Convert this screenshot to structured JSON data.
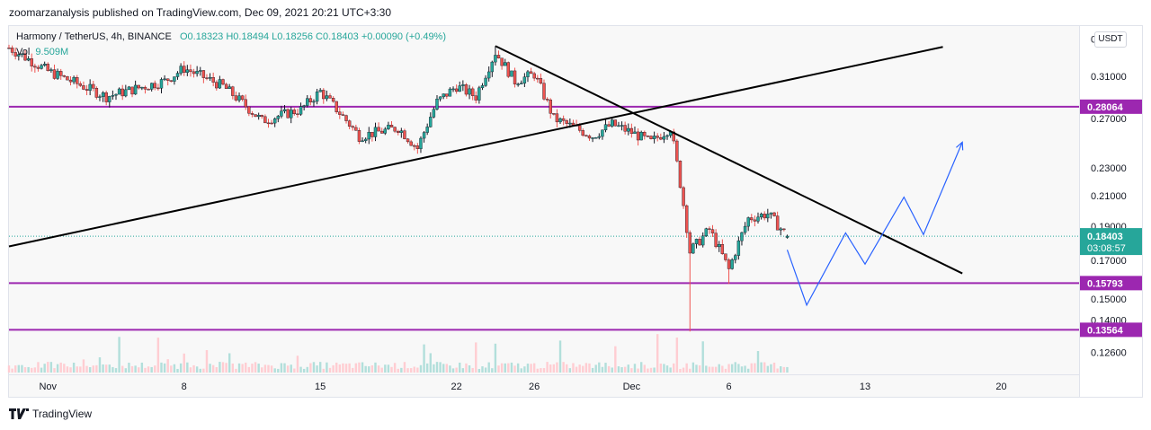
{
  "publisher_line": "zoomarzanalysis published on TradingView.com, Dec 09, 2021 20:21 UTC+3:30",
  "legend": {
    "symbol": "Harmony / TetherUS, 4h, BINANCE",
    "ohlc": "O0.18323 H0.18494 L0.18256 C0.18403 +0.00090 (+0.49%)",
    "vol_label": "Vol",
    "vol_value": "9.509M"
  },
  "currency_button": "USDT",
  "footer_brand": "TradingView",
  "icons": {
    "brand": "tradingview-logo-icon"
  },
  "colors": {
    "up": "#26a69a",
    "down": "#ef5350",
    "candle_body_up": "#26a69a",
    "candle_body_down": "#ef5350",
    "level": "#9c27b0",
    "trend": "#000000",
    "projection": "#2962ff",
    "price_badge": "#26a69a"
  },
  "chart_data": {
    "type": "candlestick",
    "y_scale": "log",
    "ylim": [
      0.118,
      0.365
    ],
    "y_ticks": [
      "0.35000",
      "0.31000",
      "0.27000",
      "0.23000",
      "0.21000",
      "0.19000",
      "0.17000",
      "0.15000",
      "0.14000",
      "0.12600"
    ],
    "x_ticks": [
      "Nov",
      "8",
      "15",
      "22",
      "26",
      "Dec",
      "6",
      "13",
      "20"
    ],
    "x_tick_dates": [
      "2021-11-01",
      "2021-11-08",
      "2021-11-15",
      "2021-11-22",
      "2021-11-26",
      "2021-12-01",
      "2021-12-06",
      "2021-12-13",
      "2021-12-20"
    ],
    "x_range": [
      "2021-10-30",
      "2021-12-24"
    ],
    "interval": "4h",
    "levels": [
      {
        "value": 0.28064,
        "label": "0.28064"
      },
      {
        "value": 0.15793,
        "label": "0.15793"
      },
      {
        "value": 0.13564,
        "label": "0.13564"
      }
    ],
    "last_price": {
      "value": 0.18403,
      "label": "0.18403",
      "countdown": "03:08:57"
    },
    "anchor_points": [
      {
        "date": "2021-10-30",
        "close": 0.34
      },
      {
        "date": "2021-11-01",
        "close": 0.315
      },
      {
        "date": "2021-11-04",
        "close": 0.29
      },
      {
        "date": "2021-11-07",
        "close": 0.305
      },
      {
        "date": "2021-11-08",
        "close": 0.318
      },
      {
        "date": "2021-11-10",
        "close": 0.3
      },
      {
        "date": "2021-11-12",
        "close": 0.268
      },
      {
        "date": "2021-11-14",
        "close": 0.278
      },
      {
        "date": "2021-11-15",
        "close": 0.295
      },
      {
        "date": "2021-11-17",
        "close": 0.255
      },
      {
        "date": "2021-11-19",
        "close": 0.262
      },
      {
        "date": "2021-11-20",
        "close": 0.245
      },
      {
        "date": "2021-11-21",
        "close": 0.285
      },
      {
        "date": "2021-11-22",
        "close": 0.3
      },
      {
        "date": "2021-11-23",
        "close": 0.29
      },
      {
        "date": "2021-11-24",
        "close": 0.335
      },
      {
        "date": "2021-11-25",
        "close": 0.305
      },
      {
        "date": "2021-11-26",
        "close": 0.312
      },
      {
        "date": "2021-11-27",
        "close": 0.27
      },
      {
        "date": "2021-11-29",
        "close": 0.255
      },
      {
        "date": "2021-11-30",
        "close": 0.265
      },
      {
        "date": "2021-12-01",
        "close": 0.258
      },
      {
        "date": "2021-12-02",
        "close": 0.25
      },
      {
        "date": "2021-12-03",
        "close": 0.262
      },
      {
        "date": "2021-12-04",
        "close": 0.175
      },
      {
        "date": "2021-12-05",
        "close": 0.188
      },
      {
        "date": "2021-12-06",
        "close": 0.165
      },
      {
        "date": "2021-12-07",
        "close": 0.195
      },
      {
        "date": "2021-12-08",
        "close": 0.198
      },
      {
        "date": "2021-12-09",
        "close": 0.18403
      }
    ],
    "extreme_wicks": [
      {
        "date": "2021-11-24",
        "high": 0.342
      },
      {
        "date": "2021-12-04",
        "low": 0.1349
      },
      {
        "date": "2021-12-06",
        "low": 0.1575
      }
    ],
    "trendlines": [
      {
        "from": {
          "date": "2021-10-30",
          "value": 0.178
        },
        "to": {
          "date": "2021-12-17",
          "value": 0.341
        }
      },
      {
        "from": {
          "date": "2021-11-24",
          "value": 0.342
        },
        "to": {
          "date": "2021-12-18",
          "value": 0.163
        }
      }
    ],
    "projection_path": [
      {
        "date": "2021-12-09",
        "value": 0.176
      },
      {
        "date": "2021-12-10",
        "value": 0.147
      },
      {
        "date": "2021-12-12",
        "value": 0.186
      },
      {
        "date": "2021-12-13",
        "value": 0.168
      },
      {
        "date": "2021-12-15",
        "value": 0.209
      },
      {
        "date": "2021-12-16",
        "value": 0.185
      },
      {
        "date": "2021-12-18",
        "value": 0.25
      }
    ]
  }
}
